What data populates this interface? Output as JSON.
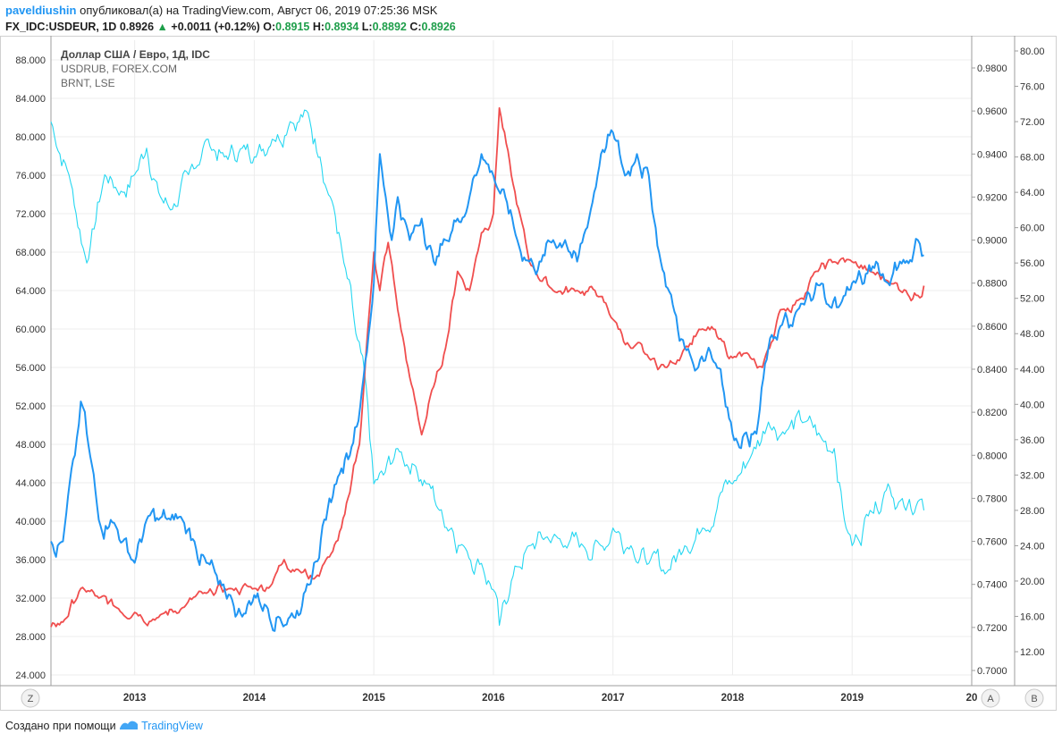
{
  "header": {
    "author": "paveldiushin",
    "published_text": "опубликовал(а) на TradingView.com, Август 06, 2019 07:25:36 MSK",
    "symbol": "FX_IDC:USDEUR, 1D",
    "last": "0.8926",
    "change": "+0.0011 (+0.12%)",
    "o_label": "O:",
    "o_value": "0.8915",
    "h_label": "H:",
    "h_value": "0.8934",
    "l_label": "L:",
    "l_value": "0.8892",
    "c_label": "C:",
    "c_value": "0.8926"
  },
  "footer": {
    "created_text": "Создано при помощи",
    "brand": "TradingView"
  },
  "buttons": {
    "z": "Z",
    "a": "A",
    "b": "B"
  },
  "colors": {
    "usdeur": "#2196f3",
    "usdrub": "#f04e4e",
    "brnt": "#26d7f1",
    "grid": "#ececec",
    "axis": "#9e9e9e"
  },
  "chart_data": {
    "type": "line",
    "legend": [
      "Доллар США / Евро, 1Д, IDC",
      "USDRUB, FOREX.COM",
      "BRNT, LSE"
    ],
    "x_ticks": [
      "2013",
      "2014",
      "2015",
      "2016",
      "2017",
      "2018",
      "2019",
      "20"
    ],
    "xlim": [
      2012.3,
      2020.0
    ],
    "left_axis": {
      "ticks": [
        "24.000",
        "28.000",
        "32.000",
        "36.000",
        "40.000",
        "44.000",
        "48.000",
        "52.000",
        "56.000",
        "60.000",
        "64.000",
        "68.000",
        "72.000",
        "76.000",
        "80.000",
        "84.000",
        "88.000"
      ],
      "range": [
        24,
        88
      ]
    },
    "middle_axis": {
      "ticks": [
        "0.7000",
        "0.7200",
        "0.7400",
        "0.7600",
        "0.7800",
        "0.8000",
        "0.8200",
        "0.8400",
        "0.8600",
        "0.8800",
        "0.9000",
        "0.9200",
        "0.9400",
        "0.9600",
        "0.9800"
      ],
      "range": [
        0.7,
        0.98
      ]
    },
    "right_axis": {
      "ticks": [
        "12.00",
        "16.00",
        "20.00",
        "24.00",
        "28.00",
        "32.00",
        "36.00",
        "40.00",
        "44.00",
        "48.00",
        "52.00",
        "56.00",
        "60.00",
        "64.00",
        "68.00",
        "72.00",
        "76.00",
        "80.00"
      ],
      "range": [
        12,
        80
      ]
    },
    "grid": true,
    "series": [
      {
        "name": "BRNT, LSE",
        "axis": "right",
        "x": [
          2012.3,
          2012.45,
          2012.6,
          2012.75,
          2012.9,
          2013.0,
          2013.1,
          2013.2,
          2013.3,
          2013.45,
          2013.6,
          2013.75,
          2013.9,
          2014.0,
          2014.15,
          2014.3,
          2014.45,
          2014.55,
          2014.65,
          2014.75,
          2014.85,
          2014.95,
          2015.0,
          2015.08,
          2015.2,
          2015.35,
          2015.45,
          2015.55,
          2015.65,
          2015.75,
          2015.9,
          2016.0,
          2016.05,
          2016.15,
          2016.3,
          2016.45,
          2016.6,
          2016.75,
          2016.9,
          2017.0,
          2017.15,
          2017.3,
          2017.45,
          2017.6,
          2017.75,
          2017.9,
          2018.0,
          2018.15,
          2018.3,
          2018.45,
          2018.6,
          2018.75,
          2018.85,
          2018.95,
          2019.0,
          2019.15,
          2019.3,
          2019.45,
          2019.55,
          2019.6
        ],
        "values": [
          72,
          66,
          56,
          66,
          64,
          66,
          69,
          64,
          62,
          66,
          70,
          68,
          69,
          68,
          70,
          72,
          73,
          68,
          63,
          56,
          48,
          40,
          31,
          32,
          35,
          33,
          31,
          28,
          26,
          24,
          22,
          19,
          15,
          20,
          24,
          25,
          24,
          24,
          24,
          26,
          24,
          22,
          21,
          24,
          26,
          30,
          31,
          34,
          38,
          37,
          38,
          36,
          35,
          26,
          24,
          28,
          31,
          28,
          29,
          28
        ]
      },
      {
        "name": "USDRUB, FOREX.COM",
        "axis": "left",
        "x": [
          2012.3,
          2012.4,
          2012.55,
          2012.7,
          2012.85,
          2013.0,
          2013.2,
          2013.4,
          2013.6,
          2013.8,
          2014.0,
          2014.15,
          2014.25,
          2014.35,
          2014.5,
          2014.6,
          2014.7,
          2014.8,
          2014.88,
          2014.95,
          2015.0,
          2015.05,
          2015.12,
          2015.2,
          2015.3,
          2015.4,
          2015.5,
          2015.6,
          2015.7,
          2015.8,
          2015.9,
          2016.0,
          2016.05,
          2016.15,
          2016.3,
          2016.5,
          2016.7,
          2016.85,
          2017.0,
          2017.15,
          2017.3,
          2017.45,
          2017.6,
          2017.75,
          2017.9,
          2018.0,
          2018.15,
          2018.25,
          2018.4,
          2018.55,
          2018.7,
          2018.85,
          2019.0,
          2019.15,
          2019.3,
          2019.45,
          2019.55,
          2019.6
        ],
        "values": [
          29,
          29.5,
          33,
          32,
          31,
          30.5,
          30,
          31,
          32.5,
          33,
          33,
          33.5,
          36,
          35,
          34,
          36,
          38,
          43,
          48,
          60,
          68,
          64,
          69,
          62,
          55,
          49,
          54,
          58,
          66,
          64,
          70,
          72,
          83,
          76,
          67,
          64,
          64,
          64,
          61,
          58,
          57,
          56,
          58,
          60,
          59,
          57,
          57,
          56,
          62,
          63,
          66,
          67,
          67,
          66,
          65,
          64,
          63.5,
          64.5
        ]
      },
      {
        "name": "Доллар США / Евро, 1Д, IDC",
        "axis": "middle",
        "x": [
          2012.3,
          2012.4,
          2012.5,
          2012.55,
          2012.6,
          2012.7,
          2012.8,
          2012.9,
          2013.0,
          2013.1,
          2013.2,
          2013.3,
          2013.4,
          2013.5,
          2013.6,
          2013.7,
          2013.8,
          2013.9,
          2014.0,
          2014.1,
          2014.2,
          2014.3,
          2014.4,
          2014.5,
          2014.6,
          2014.7,
          2014.8,
          2014.9,
          2015.0,
          2015.05,
          2015.1,
          2015.15,
          2015.2,
          2015.3,
          2015.4,
          2015.5,
          2015.6,
          2015.7,
          2015.8,
          2015.9,
          2016.0,
          2016.1,
          2016.2,
          2016.3,
          2016.4,
          2016.5,
          2016.6,
          2016.7,
          2016.8,
          2016.9,
          2017.0,
          2017.1,
          2017.2,
          2017.3,
          2017.4,
          2017.5,
          2017.6,
          2017.7,
          2017.8,
          2017.9,
          2018.0,
          2018.1,
          2018.2,
          2018.3,
          2018.4,
          2018.5,
          2018.6,
          2018.7,
          2018.8,
          2018.9,
          2019.0,
          2019.1,
          2019.2,
          2019.3,
          2019.4,
          2019.5,
          2019.55,
          2019.6
        ],
        "values": [
          0.76,
          0.76,
          0.8,
          0.825,
          0.81,
          0.77,
          0.77,
          0.76,
          0.75,
          0.77,
          0.77,
          0.77,
          0.77,
          0.76,
          0.75,
          0.74,
          0.735,
          0.725,
          0.735,
          0.73,
          0.725,
          0.725,
          0.73,
          0.75,
          0.77,
          0.79,
          0.8,
          0.83,
          0.88,
          0.94,
          0.92,
          0.9,
          0.92,
          0.9,
          0.91,
          0.89,
          0.9,
          0.91,
          0.92,
          0.94,
          0.93,
          0.92,
          0.9,
          0.89,
          0.89,
          0.9,
          0.9,
          0.89,
          0.91,
          0.94,
          0.95,
          0.93,
          0.94,
          0.93,
          0.89,
          0.87,
          0.85,
          0.84,
          0.85,
          0.84,
          0.81,
          0.81,
          0.81,
          0.85,
          0.86,
          0.86,
          0.87,
          0.88,
          0.87,
          0.87,
          0.88,
          0.88,
          0.89,
          0.88,
          0.89,
          0.89,
          0.9,
          0.893
        ]
      }
    ]
  }
}
